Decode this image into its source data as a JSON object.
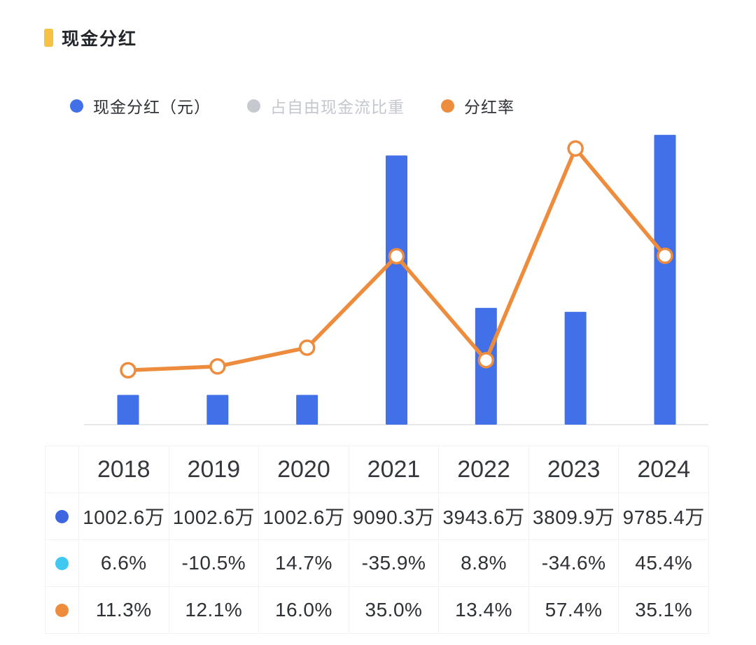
{
  "page": {
    "title": "现金分红",
    "accent_color": "#F6C243"
  },
  "legend": {
    "items": [
      {
        "label": "现金分红（元）",
        "color": "#4170E8",
        "active": true
      },
      {
        "label": "占自由现金流比重",
        "color": "#C6C9CE",
        "active": false
      },
      {
        "label": "分红率",
        "color": "#EE8C3E",
        "active": true
      }
    ]
  },
  "chart_data": {
    "type": "bar+line combo",
    "title": "现金分红",
    "categories": [
      "2018",
      "2019",
      "2020",
      "2021",
      "2022",
      "2023",
      "2024"
    ],
    "series": [
      {
        "name": "现金分红（元）",
        "type": "bar",
        "unit": "万",
        "color": "#4170E8",
        "hidden": false,
        "values": [
          1002.6,
          1002.6,
          1002.6,
          9090.3,
          3943.6,
          3809.9,
          9785.4
        ]
      },
      {
        "name": "占自由现金流比重",
        "type": "line",
        "unit": "%",
        "color": "#3FC8F0",
        "hidden": true,
        "values": [
          6.6,
          -10.5,
          14.7,
          -35.9,
          8.8,
          -34.6,
          45.4
        ]
      },
      {
        "name": "分红率",
        "type": "line",
        "unit": "%",
        "color": "#EE8C3E",
        "hidden": false,
        "values": [
          11.3,
          12.1,
          16.0,
          35.0,
          13.4,
          57.4,
          35.1
        ]
      }
    ],
    "ylim_left_wan": [
      0,
      10560
    ],
    "ylim_right_pct": [
      0,
      65
    ],
    "legend_position": "top",
    "grid": false,
    "marker_style": "open-circle"
  },
  "table": {
    "years": [
      "2018",
      "2019",
      "2020",
      "2021",
      "2022",
      "2023",
      "2024"
    ],
    "rows": [
      {
        "series": "现金分红（元）",
        "dot_color": "#3D66E0",
        "muted": false,
        "cells": [
          "1002.6万",
          "1002.6万",
          "1002.6万",
          "9090.3万",
          "3943.6万",
          "3809.9万",
          "9785.4万"
        ]
      },
      {
        "series": "占自由现金流比重",
        "dot_color": "#3FC8F0",
        "muted": true,
        "cells": [
          "6.6%",
          "-10.5%",
          "14.7%",
          "-35.9%",
          "8.8%",
          "-34.6%",
          "45.4%"
        ]
      },
      {
        "series": "分红率",
        "dot_color": "#EE8C3E",
        "muted": false,
        "cells": [
          "11.3%",
          "12.1%",
          "16.0%",
          "35.0%",
          "13.4%",
          "57.4%",
          "35.1%"
        ]
      }
    ]
  }
}
